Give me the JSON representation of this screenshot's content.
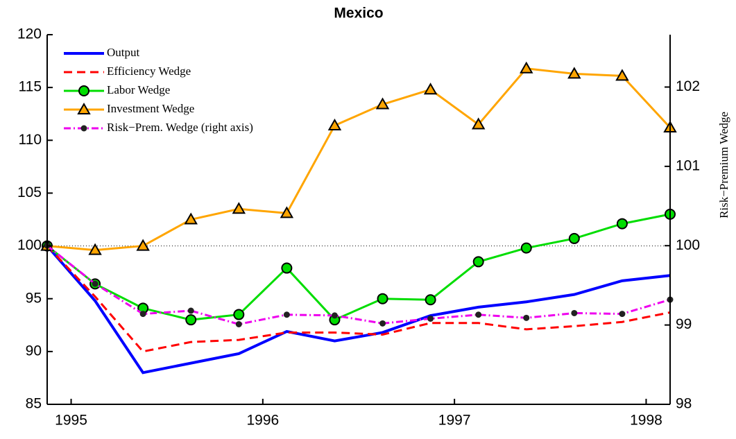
{
  "chart_data": {
    "type": "line",
    "title": "Mexico",
    "y2_label": "Risk−Premium Wedge",
    "x": [
      1994.875,
      1995.125,
      1995.375,
      1995.625,
      1995.875,
      1996.125,
      1996.375,
      1996.625,
      1996.875,
      1997.125,
      1997.375,
      1997.625,
      1997.875,
      1998.125
    ],
    "xlim": [
      1994.875,
      1998.125
    ],
    "xticks": [
      1995,
      1996,
      1997,
      1998
    ],
    "ylim": [
      85,
      120
    ],
    "yticks": [
      85,
      90,
      95,
      100,
      105,
      110,
      115,
      120
    ],
    "y2lim": [
      98,
      102.66
    ],
    "y2ticks": [
      98,
      99,
      100,
      101,
      102
    ],
    "reference_line": 100,
    "series": [
      {
        "name": "Output",
        "color": "#0000ff",
        "style": "solid",
        "marker": "none",
        "values": [
          100,
          94.8,
          88.0,
          88.9,
          89.8,
          91.9,
          91.0,
          91.8,
          93.4,
          94.2,
          94.7,
          95.4,
          96.7,
          97.2
        ]
      },
      {
        "name": "Efficiency Wedge",
        "color": "#ff0000",
        "style": "dashed",
        "marker": "none",
        "values": [
          100,
          95.2,
          90.0,
          90.9,
          91.1,
          91.8,
          91.8,
          91.6,
          92.7,
          92.7,
          92.1,
          92.4,
          92.8,
          93.7
        ]
      },
      {
        "name": "Labor Wedge",
        "color": "#00dd00",
        "style": "solid",
        "marker": "circle",
        "values": [
          100,
          96.4,
          94.1,
          93.0,
          93.5,
          97.9,
          93.0,
          95.0,
          94.9,
          98.5,
          99.8,
          100.7,
          102.1,
          103.0
        ]
      },
      {
        "name": "Investment Wedge",
        "color": "#ffa500",
        "style": "solid",
        "marker": "triangle",
        "values": [
          100,
          99.6,
          100.0,
          102.5,
          103.5,
          103.1,
          111.4,
          113.4,
          114.8,
          111.5,
          116.8,
          116.3,
          116.1,
          111.2
        ]
      },
      {
        "name": "Risk−Prem. Wedge (right axis)",
        "color": "#ee00ee",
        "style": "dashdot",
        "marker": "dot",
        "axis": "y2",
        "values": [
          100,
          99.52,
          99.14,
          99.18,
          99.01,
          99.13,
          99.12,
          99.02,
          99.08,
          99.13,
          99.09,
          99.15,
          99.14,
          99.32
        ]
      }
    ]
  }
}
